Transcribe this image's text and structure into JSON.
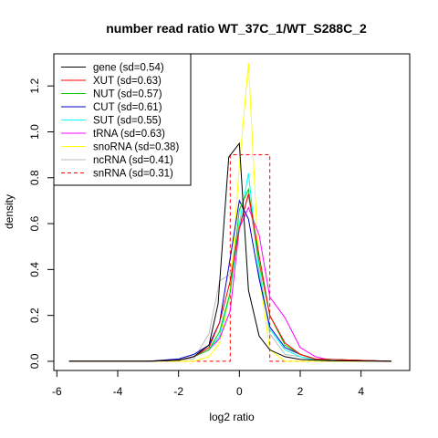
{
  "chart_data": {
    "type": "line",
    "title": "number read ratio WT_37C_1/WT_S288C_2",
    "xlabel": "log2 ratio",
    "ylabel": "density",
    "xlim": [
      -6.1,
      5.6
    ],
    "ylim": [
      -0.04,
      1.34
    ],
    "xticks": [
      -6,
      -4,
      -2,
      0,
      2,
      4
    ],
    "yticks": [
      0.0,
      0.2,
      0.4,
      0.6,
      0.8,
      1.0,
      1.2
    ],
    "grid": false,
    "legend_position": "top-left",
    "series": [
      {
        "name": "gene (sd=0.54)",
        "color": "#000000",
        "dash": false,
        "x": [
          -5.6,
          -3.0,
          -2.0,
          -1.5,
          -1.0,
          -0.7,
          -0.35,
          0.0,
          0.3,
          0.65,
          1.0,
          1.5,
          2.0,
          3.0,
          5.0
        ],
        "y": [
          0.0,
          0.0,
          0.005,
          0.02,
          0.07,
          0.25,
          0.89,
          0.95,
          0.31,
          0.11,
          0.05,
          0.02,
          0.008,
          0.002,
          0.0
        ]
      },
      {
        "name": "XUT (sd=0.63)",
        "color": "#ff0000",
        "dash": false,
        "x": [
          -5.6,
          -3.0,
          -2.0,
          -1.5,
          -1.0,
          -0.65,
          -0.3,
          0.0,
          0.3,
          0.65,
          1.0,
          1.5,
          2.0,
          2.5,
          5.0
        ],
        "y": [
          0.0,
          0.0,
          0.005,
          0.02,
          0.06,
          0.17,
          0.35,
          0.58,
          0.73,
          0.46,
          0.2,
          0.08,
          0.03,
          0.01,
          0.0
        ]
      },
      {
        "name": "NUT (sd=0.57)",
        "color": "#00cc00",
        "dash": false,
        "x": [
          -5.6,
          -3.0,
          -2.0,
          -1.5,
          -1.0,
          -0.65,
          -0.3,
          0.0,
          0.3,
          0.65,
          1.0,
          1.5,
          2.0,
          2.5,
          5.0
        ],
        "y": [
          0.0,
          0.0,
          0.005,
          0.02,
          0.05,
          0.13,
          0.3,
          0.66,
          0.75,
          0.43,
          0.2,
          0.07,
          0.03,
          0.01,
          0.0
        ]
      },
      {
        "name": "CUT (sd=0.61)",
        "color": "#0000cc",
        "dash": false,
        "x": [
          -5.6,
          -3.0,
          -2.0,
          -1.5,
          -1.0,
          -0.65,
          -0.3,
          0.0,
          0.3,
          0.65,
          1.0,
          1.5,
          2.0,
          2.5,
          5.0
        ],
        "y": [
          0.0,
          0.0,
          0.01,
          0.03,
          0.07,
          0.17,
          0.45,
          0.7,
          0.62,
          0.36,
          0.15,
          0.06,
          0.03,
          0.01,
          0.0
        ]
      },
      {
        "name": "SUT (sd=0.55)",
        "color": "#00ffff",
        "dash": false,
        "x": [
          -5.6,
          -3.0,
          -2.0,
          -1.5,
          -1.0,
          -0.65,
          -0.3,
          0.0,
          0.3,
          0.65,
          1.0,
          1.5,
          2.0,
          2.5,
          5.0
        ],
        "y": [
          0.0,
          0.0,
          0.005,
          0.02,
          0.05,
          0.11,
          0.3,
          0.6,
          0.82,
          0.38,
          0.14,
          0.05,
          0.02,
          0.005,
          0.0
        ]
      },
      {
        "name": "tRNA (sd=0.63)",
        "color": "#ff00ff",
        "dash": false,
        "x": [
          -5.6,
          -3.0,
          -2.0,
          -1.5,
          -1.0,
          -0.65,
          -0.3,
          0.0,
          0.3,
          0.65,
          1.0,
          1.5,
          2.0,
          2.5,
          3.0,
          5.0
        ],
        "y": [
          0.0,
          0.0,
          0.005,
          0.02,
          0.05,
          0.1,
          0.22,
          0.58,
          0.67,
          0.55,
          0.28,
          0.19,
          0.06,
          0.02,
          0.005,
          0.0
        ]
      },
      {
        "name": "snoRNA (sd=0.38)",
        "color": "#ffff00",
        "dash": false,
        "x": [
          -5.6,
          -3.0,
          -1.5,
          -1.0,
          -0.65,
          -0.3,
          0.0,
          0.3,
          0.65,
          1.0,
          1.5,
          3.0,
          5.0
        ],
        "y": [
          0.0,
          0.0,
          0.0,
          0.02,
          0.08,
          0.3,
          0.85,
          1.3,
          0.38,
          0.05,
          0.0,
          0.0,
          0.0
        ]
      },
      {
        "name": "ncRNA (sd=0.41)",
        "color": "#bbbbbb",
        "dash": false,
        "x": [
          -5.6,
          -3.0,
          -1.5,
          -1.0,
          -0.65,
          -0.3,
          0.0,
          0.3,
          0.65,
          1.0,
          1.5,
          3.0,
          5.0
        ],
        "y": [
          0.0,
          0.0,
          0.01,
          0.12,
          0.35,
          0.38,
          0.6,
          0.72,
          0.41,
          0.12,
          0.03,
          0.0,
          0.0
        ]
      },
      {
        "name": "snRNA (sd=0.31)",
        "color": "#ff0000",
        "dash": true,
        "x": [
          -5.6,
          -0.3,
          -0.3,
          0.0,
          0.3,
          0.65,
          1.0,
          1.0,
          5.0
        ],
        "y": [
          0.0,
          0.0,
          0.9,
          0.9,
          0.9,
          0.9,
          0.9,
          0.0,
          0.0
        ]
      }
    ]
  }
}
